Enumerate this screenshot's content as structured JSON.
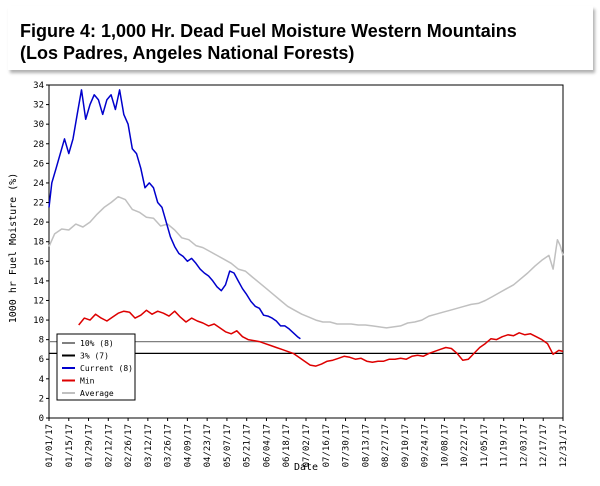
{
  "figure": {
    "title_line1": "Figure 4:  1,000 Hr. Dead Fuel Moisture Western Mountains",
    "title_line2": "(Los Padres, Angeles National Forests)"
  },
  "chart_data": {
    "type": "line",
    "xlabel": "Date",
    "ylabel": "1000 hr Fuel Moisture (%)",
    "ylim": [
      0,
      34
    ],
    "yticks": [
      0,
      2,
      4,
      6,
      8,
      10,
      12,
      14,
      16,
      18,
      20,
      22,
      24,
      26,
      28,
      30,
      32,
      34
    ],
    "xlim": [
      "01/01/17",
      "12/31/17"
    ],
    "xticks": [
      "01/01/17",
      "01/15/17",
      "01/29/17",
      "02/12/17",
      "02/26/17",
      "03/12/17",
      "03/26/17",
      "04/09/17",
      "04/23/17",
      "05/07/17",
      "05/21/17",
      "06/04/17",
      "06/18/17",
      "07/02/17",
      "07/16/17",
      "07/30/17",
      "08/13/17",
      "08/27/17",
      "09/10/17",
      "09/24/17",
      "10/08/17",
      "10/22/17",
      "11/05/17",
      "11/19/17",
      "12/03/17",
      "12/17/17",
      "12/31/17"
    ],
    "grid": false,
    "legend_position": "bottom-left",
    "series": [
      {
        "name": "10% (8)",
        "color": "#808080",
        "kind": "hline",
        "value": 7.8
      },
      {
        "name": "3% (7)",
        "color": "#000000",
        "kind": "hline",
        "value": 6.6
      },
      {
        "name": "Current (8)",
        "color": "#0000cc",
        "kind": "line",
        "x": [
          "01/01/17",
          "01/03/17",
          "01/06/17",
          "01/09/17",
          "01/12/17",
          "01/15/17",
          "01/18/17",
          "01/21/17",
          "01/24/17",
          "01/27/17",
          "01/30/17",
          "02/02/17",
          "02/05/17",
          "02/08/17",
          "02/11/17",
          "02/14/17",
          "02/17/17",
          "02/20/17",
          "02/23/17",
          "02/26/17",
          "03/01/17",
          "03/04/17",
          "03/07/17",
          "03/10/17",
          "03/13/17",
          "03/16/17",
          "03/19/17",
          "03/22/17",
          "03/25/17",
          "03/28/17",
          "03/31/17",
          "04/03/17",
          "04/06/17",
          "04/09/17",
          "04/12/17",
          "04/15/17",
          "04/18/17",
          "04/21/17",
          "04/24/17",
          "04/27/17",
          "04/30/17",
          "05/03/17",
          "05/06/17",
          "05/09/17",
          "05/12/17",
          "05/15/17",
          "05/18/17",
          "05/21/17",
          "05/24/17",
          "05/27/17",
          "05/30/17",
          "06/02/17",
          "06/05/17",
          "06/08/17",
          "06/11/17",
          "06/14/17",
          "06/17/17",
          "06/20/17",
          "06/23/17",
          "06/26/17",
          "06/28/17"
        ],
        "y": [
          21.5,
          24.0,
          25.5,
          27.0,
          28.5,
          27.0,
          28.5,
          31.0,
          33.5,
          30.5,
          32.0,
          33.0,
          32.5,
          31.0,
          32.5,
          33.0,
          31.5,
          33.5,
          31.0,
          30.0,
          27.5,
          27.0,
          25.5,
          23.5,
          24.0,
          23.5,
          22.0,
          21.5,
          20.0,
          18.5,
          17.5,
          16.8,
          16.5,
          16.0,
          16.3,
          15.8,
          15.2,
          14.8,
          14.5,
          14.0,
          13.4,
          13.0,
          13.6,
          15.0,
          14.8,
          14.0,
          13.2,
          12.6,
          11.9,
          11.4,
          11.2,
          10.5,
          10.4,
          10.2,
          9.9,
          9.4,
          9.4,
          9.1,
          8.7,
          8.3,
          8.1
        ]
      },
      {
        "name": "Min",
        "color": "#dd0000",
        "kind": "line",
        "x": [
          "01/22/17",
          "01/26/17",
          "01/30/17",
          "02/03/17",
          "02/07/17",
          "02/11/17",
          "02/15/17",
          "02/19/17",
          "02/23/17",
          "02/27/17",
          "03/03/17",
          "03/07/17",
          "03/11/17",
          "03/15/17",
          "03/19/17",
          "03/23/17",
          "03/27/17",
          "03/31/17",
          "04/04/17",
          "04/08/17",
          "04/12/17",
          "04/16/17",
          "04/20/17",
          "04/24/17",
          "04/28/17",
          "05/02/17",
          "05/06/17",
          "05/10/17",
          "05/14/17",
          "05/18/17",
          "05/22/17",
          "05/26/17",
          "05/30/17",
          "06/03/17",
          "06/07/17",
          "06/11/17",
          "06/15/17",
          "06/19/17",
          "06/23/17",
          "06/27/17",
          "07/01/17",
          "07/05/17",
          "07/09/17",
          "07/13/17",
          "07/17/17",
          "07/21/17",
          "07/25/17",
          "07/29/17",
          "08/02/17",
          "08/06/17",
          "08/10/17",
          "08/14/17",
          "08/18/17",
          "08/22/17",
          "08/26/17",
          "08/30/17",
          "09/03/17",
          "09/07/17",
          "09/11/17",
          "09/15/17",
          "09/19/17",
          "09/23/17",
          "09/27/17",
          "10/01/17",
          "10/05/17",
          "10/09/17",
          "10/13/17",
          "10/17/17",
          "10/21/17",
          "10/25/17",
          "10/29/17",
          "11/02/17",
          "11/06/17",
          "11/10/17",
          "11/14/17",
          "11/18/17",
          "11/22/17",
          "11/26/17",
          "11/30/17",
          "12/04/17",
          "12/08/17",
          "12/12/17",
          "12/16/17",
          "12/20/17",
          "12/24/17",
          "12/28/17",
          "12/31/17"
        ],
        "y": [
          9.5,
          10.2,
          10.0,
          10.6,
          10.2,
          9.9,
          10.3,
          10.7,
          10.9,
          10.8,
          10.2,
          10.5,
          11.0,
          10.6,
          10.9,
          10.7,
          10.4,
          10.9,
          10.3,
          9.8,
          10.2,
          9.9,
          9.7,
          9.4,
          9.6,
          9.2,
          8.8,
          8.6,
          8.9,
          8.3,
          8.0,
          7.9,
          7.8,
          7.6,
          7.4,
          7.2,
          7.0,
          6.8,
          6.6,
          6.2,
          5.8,
          5.4,
          5.3,
          5.5,
          5.8,
          5.9,
          6.1,
          6.3,
          6.2,
          6.0,
          6.1,
          5.8,
          5.7,
          5.8,
          5.8,
          6.0,
          6.0,
          6.1,
          6.0,
          6.3,
          6.4,
          6.3,
          6.6,
          6.8,
          7.0,
          7.2,
          7.1,
          6.6,
          5.9,
          6.0,
          6.6,
          7.2,
          7.6,
          8.1,
          8.0,
          8.3,
          8.5,
          8.4,
          8.7,
          8.5,
          8.6,
          8.3,
          8.0,
          7.6,
          6.5,
          6.9,
          6.8
        ]
      },
      {
        "name": "Average",
        "color": "#c0c0c0",
        "kind": "line",
        "x": [
          "01/01/17",
          "01/05/17",
          "01/10/17",
          "01/15/17",
          "01/20/17",
          "01/25/17",
          "01/30/17",
          "02/04/17",
          "02/09/17",
          "02/14/17",
          "02/19/17",
          "02/24/17",
          "03/01/17",
          "03/06/17",
          "03/11/17",
          "03/16/17",
          "03/21/17",
          "03/26/17",
          "03/31/17",
          "04/05/17",
          "04/10/17",
          "04/15/17",
          "04/20/17",
          "04/25/17",
          "04/30/17",
          "05/05/17",
          "05/10/17",
          "05/15/17",
          "05/20/17",
          "05/25/17",
          "05/30/17",
          "06/04/17",
          "06/09/17",
          "06/14/17",
          "06/19/17",
          "06/24/17",
          "06/29/17",
          "07/04/17",
          "07/09/17",
          "07/14/17",
          "07/19/17",
          "07/24/17",
          "07/29/17",
          "08/03/17",
          "08/08/17",
          "08/13/17",
          "08/18/17",
          "08/23/17",
          "08/28/17",
          "09/02/17",
          "09/07/17",
          "09/12/17",
          "09/17/17",
          "09/22/17",
          "09/27/17",
          "10/02/17",
          "10/07/17",
          "10/12/17",
          "10/17/17",
          "10/22/17",
          "10/27/17",
          "11/01/17",
          "11/06/17",
          "11/11/17",
          "11/16/17",
          "11/21/17",
          "11/26/17",
          "12/01/17",
          "12/06/17",
          "12/11/17",
          "12/16/17",
          "12/21/17",
          "12/24/17",
          "12/27/17",
          "12/29/17",
          "12/31/17"
        ],
        "y": [
          17.5,
          18.8,
          19.3,
          19.2,
          19.8,
          19.5,
          20.0,
          20.8,
          21.5,
          22.0,
          22.6,
          22.3,
          21.3,
          21.0,
          20.5,
          20.4,
          19.6,
          19.8,
          19.2,
          18.4,
          18.2,
          17.6,
          17.4,
          17.0,
          16.6,
          16.2,
          15.8,
          15.2,
          15.0,
          14.4,
          13.8,
          13.2,
          12.6,
          12.0,
          11.4,
          11.0,
          10.6,
          10.3,
          10.0,
          9.8,
          9.8,
          9.6,
          9.6,
          9.6,
          9.5,
          9.5,
          9.4,
          9.3,
          9.2,
          9.3,
          9.4,
          9.7,
          9.8,
          10.0,
          10.4,
          10.6,
          10.8,
          11.0,
          11.2,
          11.4,
          11.6,
          11.7,
          12.0,
          12.4,
          12.8,
          13.2,
          13.6,
          14.2,
          14.8,
          15.5,
          16.1,
          16.6,
          15.2,
          18.2,
          17.6,
          16.6
        ]
      }
    ]
  }
}
